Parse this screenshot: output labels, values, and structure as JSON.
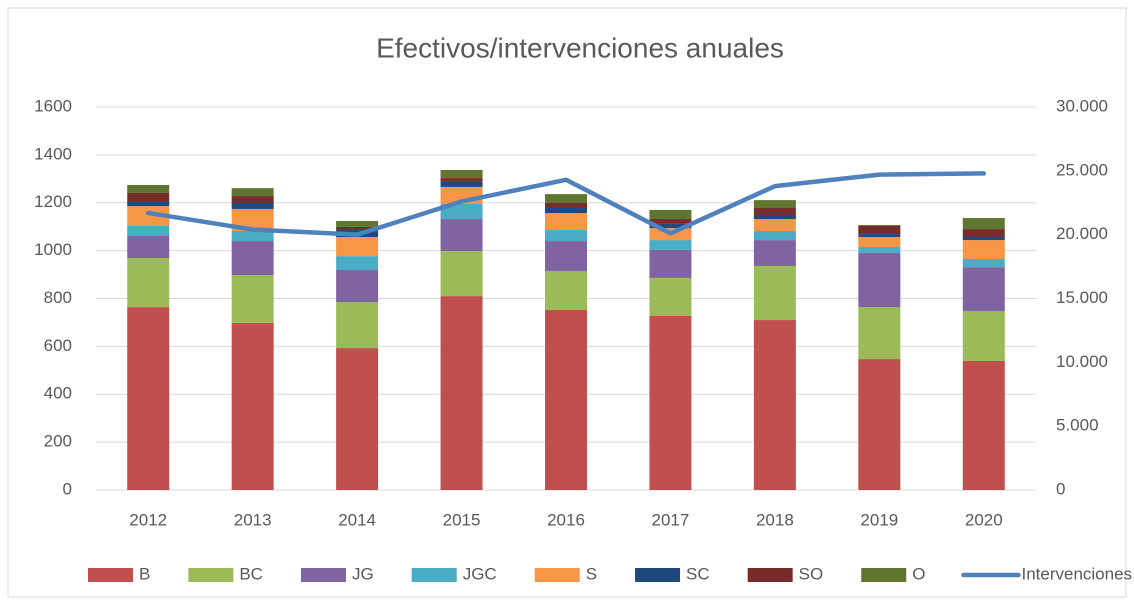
{
  "chart_data": {
    "type": "bar",
    "stacked": true,
    "title": "Efectivos/intervenciones anuales",
    "categories": [
      "2012",
      "2013",
      "2014",
      "2015",
      "2016",
      "2017",
      "2018",
      "2019",
      "2020"
    ],
    "series": [
      {
        "name": "B",
        "color": "#c0504d",
        "values": [
          764,
          698,
          593,
          810,
          752,
          727,
          710,
          547,
          539
        ]
      },
      {
        "name": "BC",
        "color": "#9bbb59",
        "values": [
          205,
          200,
          192,
          188,
          163,
          159,
          226,
          217,
          209
        ]
      },
      {
        "name": "JG",
        "color": "#8064a2",
        "values": [
          92,
          142,
          134,
          134,
          125,
          117,
          108,
          226,
          183
        ]
      },
      {
        "name": "JGC",
        "color": "#4bacc6",
        "values": [
          42,
          42,
          58,
          63,
          46,
          41,
          38,
          25,
          34
        ]
      },
      {
        "name": "S",
        "color": "#f79646",
        "values": [
          83,
          92,
          80,
          71,
          71,
          50,
          50,
          42,
          79
        ]
      },
      {
        "name": "SC",
        "color": "#1f497d",
        "values": [
          21,
          25,
          29,
          21,
          21,
          21,
          17,
          12,
          13
        ]
      },
      {
        "name": "SO",
        "color": "#772c2a",
        "values": [
          34,
          29,
          13,
          16,
          21,
          17,
          29,
          34,
          33
        ]
      },
      {
        "name": "O",
        "color": "#5f7530",
        "values": [
          33,
          33,
          25,
          34,
          37,
          38,
          33,
          4,
          46
        ]
      },
      {
        "name": "Intervenciones",
        "type": "line",
        "axis": "y2",
        "color": "#4f81bd",
        "values": [
          21700,
          20400,
          20000,
          22600,
          24300,
          20100,
          23800,
          24700,
          24800
        ]
      }
    ],
    "ylim": [
      0,
      1600
    ],
    "yticks": [
      0,
      200,
      400,
      600,
      800,
      1000,
      1200,
      1400,
      1600
    ],
    "y2lim": [
      0,
      30000
    ],
    "y2ticks": [
      0,
      {
        "value": 5000,
        "label": "5.000"
      },
      {
        "value": 10000,
        "label": "10.000"
      },
      {
        "value": 15000,
        "label": "15.000"
      },
      {
        "value": 20000,
        "label": "20.000"
      },
      {
        "value": 25000,
        "label": "25.000"
      },
      {
        "value": 30000,
        "label": "30.000"
      }
    ],
    "grid": true,
    "legend": "bottom"
  }
}
